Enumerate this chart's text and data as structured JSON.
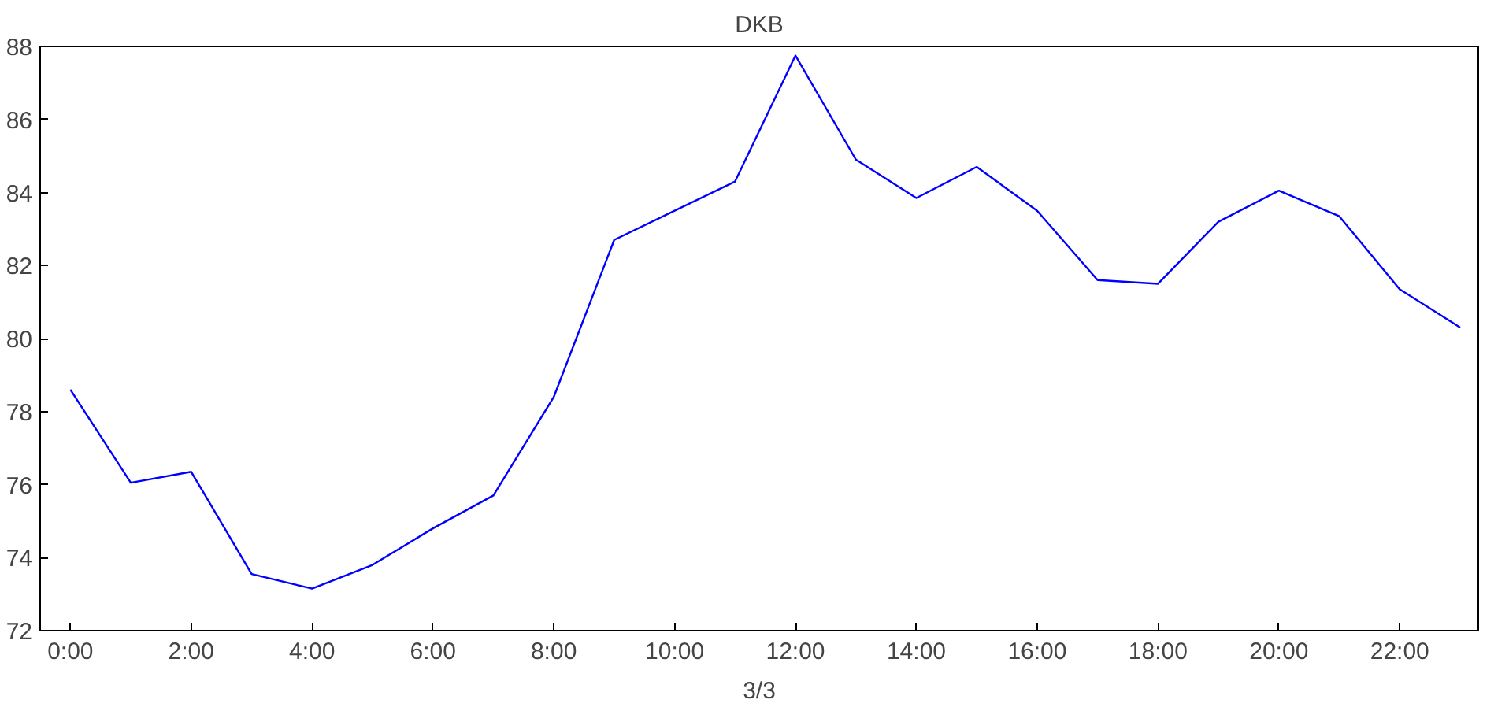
{
  "chart_data": {
    "type": "line",
    "title": "DKB",
    "xlabel": "3/3",
    "x": [
      0,
      1,
      2,
      3,
      4,
      5,
      6,
      7,
      8,
      9,
      10,
      11,
      12,
      13,
      14,
      15,
      16,
      17,
      18,
      19,
      20,
      21,
      22,
      23
    ],
    "series": [
      {
        "color": "#0000ff",
        "values": [
          78.6,
          76.05,
          76.35,
          73.55,
          73.15,
          73.8,
          74.8,
          75.7,
          78.4,
          82.7,
          83.5,
          84.3,
          87.75,
          84.9,
          83.85,
          84.7,
          83.5,
          81.6,
          81.5,
          83.2,
          84.05,
          83.35,
          81.35,
          80.3
        ]
      }
    ],
    "xlim": [
      -0.5,
      23.3
    ],
    "xticks": [
      {
        "value": 0,
        "label": "0:00"
      },
      {
        "value": 2,
        "label": "2:00"
      },
      {
        "value": 4,
        "label": "4:00"
      },
      {
        "value": 6,
        "label": "6:00"
      },
      {
        "value": 8,
        "label": "8:00"
      },
      {
        "value": 10,
        "label": "10:00"
      },
      {
        "value": 12,
        "label": "12:00"
      },
      {
        "value": 14,
        "label": "14:00"
      },
      {
        "value": 16,
        "label": "16:00"
      },
      {
        "value": 18,
        "label": "18:00"
      },
      {
        "value": 20,
        "label": "20:00"
      },
      {
        "value": 22,
        "label": "22:00"
      }
    ],
    "ylim": [
      72,
      88
    ],
    "yticks": [
      72,
      74,
      76,
      78,
      80,
      82,
      84,
      86,
      88
    ],
    "grid": false,
    "marker": "none",
    "line_style": "solid"
  }
}
